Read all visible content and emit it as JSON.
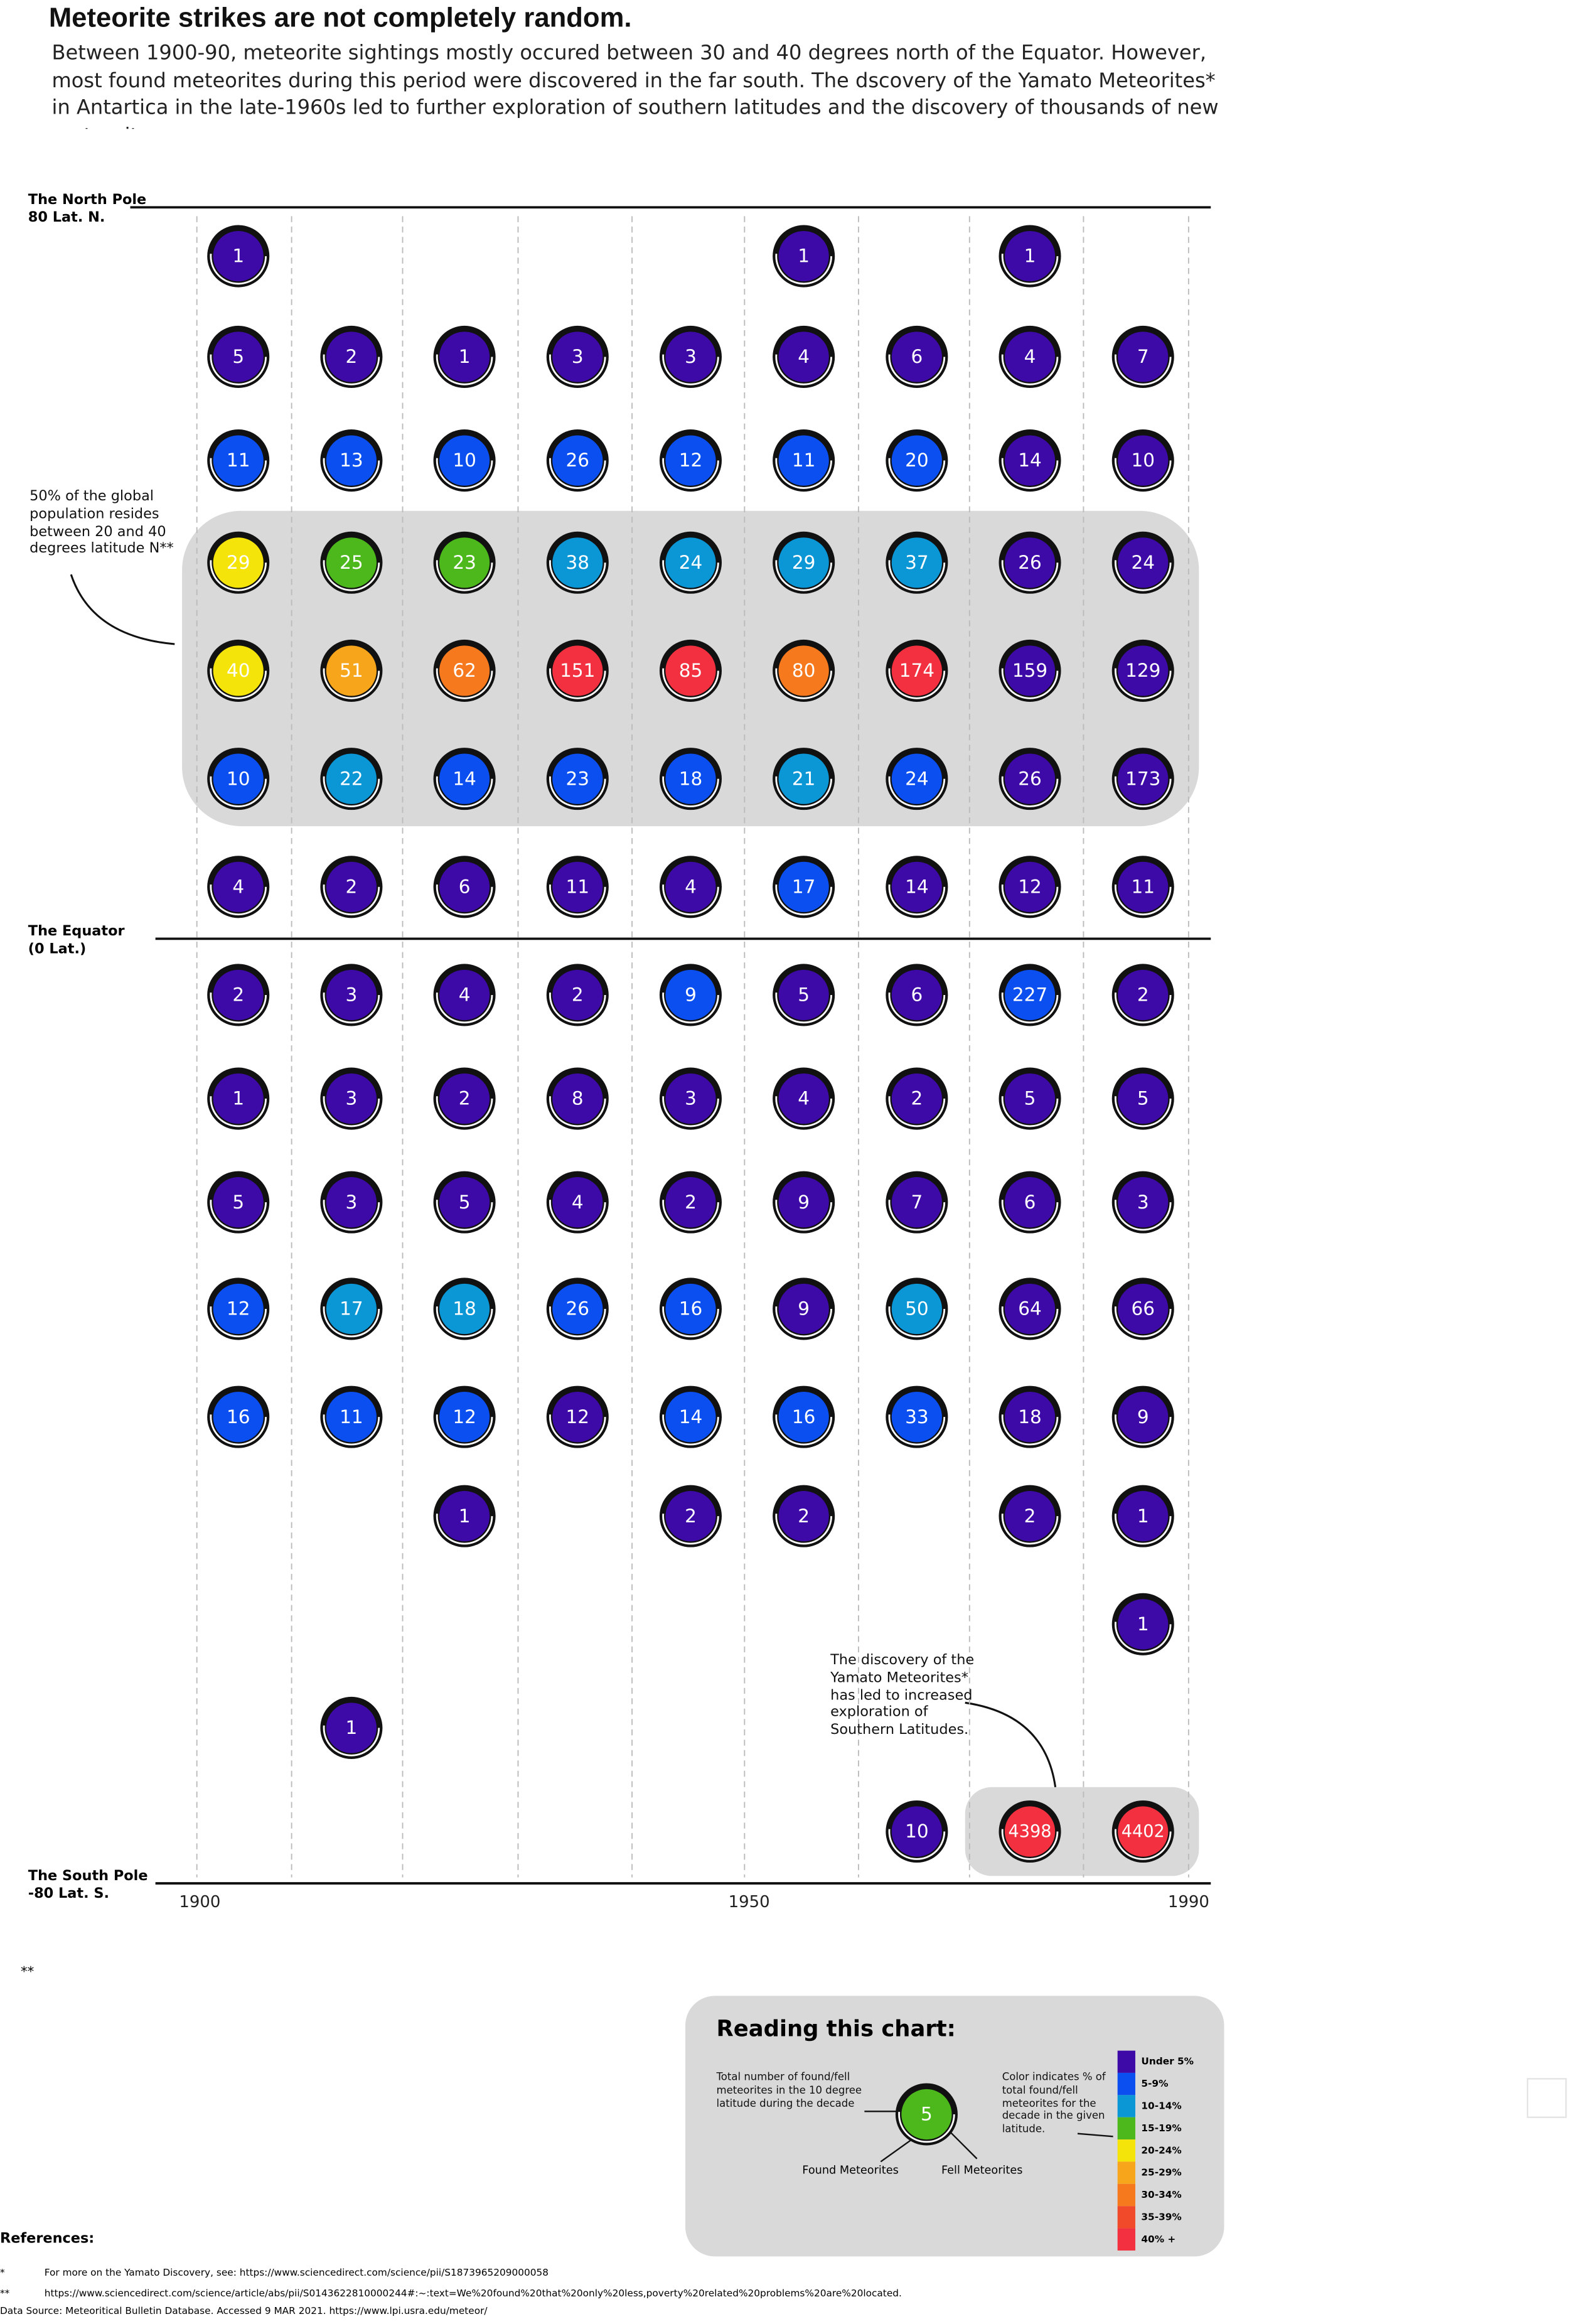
{
  "chart_data": {
    "type": "dot-grid",
    "title": "Meteorite strikes are not completely random.",
    "subtitle": "Between 1900-90, meteorite sightings mostly occured between 30 and 40 degrees north of the Equator. However, most found meteorites during this period were discovered in the far south. The dscovery of the Yamato Meteorites* in Antartica in the late-1960s led to further exploration of southern latitudes and the discovery of thousands of new meteorites.",
    "north_pole_label": [
      "The North Pole",
      "80 Lat. N."
    ],
    "equator_label": [
      "The Equator",
      "(0 Lat.)"
    ],
    "south_pole_label": [
      "The South Pole",
      "-80 Lat. S."
    ],
    "population_note": "50% of the global population resides between 20 and 40 degrees latitude N**",
    "yamato_note": "The discovery of the Yamato Meteorites* has led to increased exploration of Southern Latitudes.",
    "xlim": [
      1900,
      1990
    ],
    "xticks": [
      1900,
      1950,
      1990
    ],
    "values": [
      [
        1,
        null,
        null,
        null,
        null,
        1,
        null,
        1,
        null
      ],
      [
        5,
        2,
        1,
        3,
        3,
        4,
        6,
        4,
        7
      ],
      [
        11,
        13,
        10,
        26,
        12,
        11,
        20,
        14,
        10
      ],
      [
        29,
        25,
        23,
        38,
        24,
        29,
        37,
        26,
        24
      ],
      [
        40,
        51,
        62,
        151,
        85,
        80,
        174,
        159,
        129
      ],
      [
        10,
        22,
        14,
        23,
        18,
        21,
        24,
        26,
        173
      ],
      [
        4,
        2,
        6,
        11,
        4,
        17,
        14,
        12,
        11
      ],
      [
        2,
        3,
        4,
        2,
        9,
        5,
        6,
        227,
        2
      ],
      [
        1,
        3,
        2,
        8,
        3,
        4,
        2,
        5,
        5
      ],
      [
        5,
        3,
        5,
        4,
        2,
        9,
        7,
        6,
        3
      ],
      [
        12,
        17,
        18,
        26,
        16,
        9,
        50,
        64,
        66
      ],
      [
        16,
        11,
        12,
        12,
        14,
        16,
        33,
        18,
        9
      ],
      [
        null,
        null,
        1,
        null,
        2,
        2,
        null,
        2,
        1
      ],
      [
        null,
        null,
        null,
        null,
        null,
        null,
        null,
        null,
        1
      ],
      [
        null,
        1,
        null,
        null,
        null,
        null,
        null,
        null,
        null
      ],
      [
        null,
        null,
        null,
        null,
        null,
        null,
        10,
        4398,
        4402
      ]
    ],
    "color_index": [
      [
        0,
        null,
        null,
        null,
        null,
        0,
        null,
        0,
        null
      ],
      [
        0,
        0,
        0,
        0,
        0,
        0,
        0,
        0,
        0
      ],
      [
        1,
        1,
        1,
        1,
        1,
        1,
        1,
        0,
        0
      ],
      [
        4,
        3,
        3,
        2,
        2,
        2,
        2,
        0,
        0
      ],
      [
        4,
        5,
        6,
        8,
        8,
        6,
        8,
        0,
        0
      ],
      [
        1,
        2,
        1,
        1,
        1,
        2,
        1,
        0,
        0
      ],
      [
        0,
        0,
        0,
        0,
        0,
        1,
        0,
        0,
        0
      ],
      [
        0,
        0,
        0,
        0,
        1,
        0,
        0,
        1,
        0
      ],
      [
        0,
        0,
        0,
        0,
        0,
        0,
        0,
        0,
        0
      ],
      [
        0,
        0,
        0,
        0,
        0,
        0,
        0,
        0,
        0
      ],
      [
        1,
        2,
        2,
        1,
        1,
        0,
        2,
        0,
        0
      ],
      [
        1,
        1,
        1,
        0,
        1,
        1,
        1,
        0,
        0
      ],
      [
        null,
        null,
        0,
        null,
        0,
        0,
        null,
        0,
        0
      ],
      [
        null,
        null,
        null,
        null,
        null,
        null,
        null,
        null,
        0
      ],
      [
        null,
        0,
        null,
        null,
        null,
        null,
        null,
        null,
        null
      ],
      [
        null,
        null,
        null,
        null,
        null,
        null,
        0,
        8,
        8
      ]
    ],
    "legend": {
      "title": "Reading this chart:",
      "total_note": "Total number of found/fell meteorites in the 10 degree latitude during the decade",
      "color_note": "Color indicates % of total found/fell meteorites for the decade in the given latitude.",
      "found_label": "Found Meteorites",
      "fell_label": "Fell Meteorites",
      "sample_value": 5,
      "sample_color_index": 3,
      "classes": [
        {
          "label": "Under 5%",
          "color": "#3d0aa8"
        },
        {
          "label": "5-9%",
          "color": "#0b4ff0"
        },
        {
          "label": "10-14%",
          "color": "#0b96d6"
        },
        {
          "label": "15-19%",
          "color": "#4cb81c"
        },
        {
          "label": "20-24%",
          "color": "#f5e40a"
        },
        {
          "label": "25-29%",
          "color": "#f7a51b"
        },
        {
          "label": "30-34%",
          "color": "#f7791e"
        },
        {
          "label": "35-39%",
          "color": "#f04a2a"
        },
        {
          "label": "40% +",
          "color": "#f2303f"
        }
      ]
    },
    "footnote_marker": "**",
    "references": {
      "title": "References:",
      "items": [
        {
          "marker": "*",
          "text": "For more on the Yamato Discovery, see: https://www.sciencedirect.com/science/pii/S1873965209000058"
        },
        {
          "marker": "**",
          "text": "https://www.sciencedirect.com/science/article/abs/pii/S0143622810000244#:~:text=We%20found%20that%20only%20less,poverty%20related%20problems%20are%20located."
        }
      ],
      "source": "Data Source: Meteoritical Bulletin Database. Accessed 9 MAR 2021. https://www.lpi.usra.edu/meteor/"
    }
  }
}
